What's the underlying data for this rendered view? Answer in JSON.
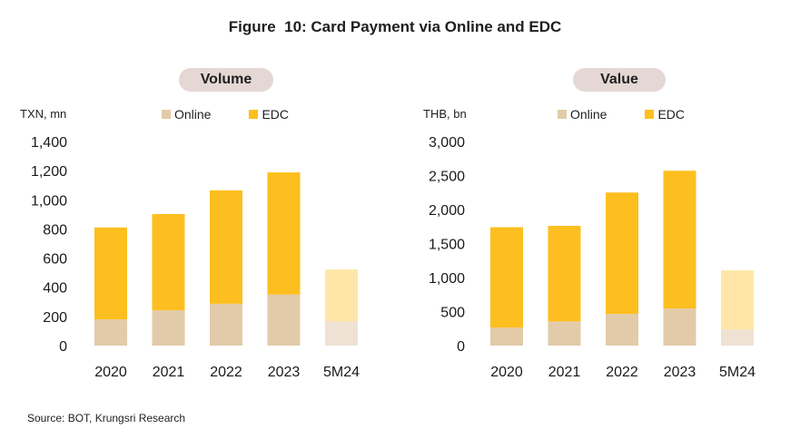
{
  "figure": {
    "title": "Figure  10: Card Payment via Online and EDC"
  },
  "source": "Source: BOT, Krungsri Research",
  "colors": {
    "online": "#e2cba8",
    "edc": "#fdbf1f",
    "online_partial": "#efe2d4",
    "edc_partial": "#ffe6a8",
    "pill": "#e4d7d4"
  },
  "chart_data": [
    {
      "type": "bar",
      "stacked": true,
      "title": "Volume",
      "ylabel": "TXN, mn",
      "categories": [
        "2020",
        "2021",
        "2022",
        "2023",
        "5M24"
      ],
      "series": [
        {
          "name": "Online",
          "values": [
            180,
            242,
            287,
            350,
            165
          ]
        },
        {
          "name": "EDC",
          "values": [
            630,
            660,
            778,
            838,
            357
          ]
        }
      ],
      "ylim": [
        0,
        1400
      ],
      "yticks": [
        0,
        200,
        400,
        600,
        800,
        1000,
        1200,
        1400
      ],
      "ytick_labels": [
        "0",
        "200",
        "400",
        "600",
        "800",
        "1,000",
        "1,200",
        "1,400"
      ],
      "legend": "top",
      "grid": false
    },
    {
      "type": "bar",
      "stacked": true,
      "title": "Value",
      "ylabel": "THB, bn",
      "categories": [
        "2020",
        "2021",
        "2022",
        "2023",
        "5M24"
      ],
      "series": [
        {
          "name": "Online",
          "values": [
            265,
            355,
            465,
            545,
            235
          ]
        },
        {
          "name": "EDC",
          "values": [
            1475,
            1405,
            1785,
            2025,
            870
          ]
        }
      ],
      "ylim": [
        0,
        3000
      ],
      "yticks": [
        0,
        500,
        1000,
        1500,
        2000,
        2500,
        3000
      ],
      "ytick_labels": [
        "0",
        "500",
        "1,000",
        "1,500",
        "2,000",
        "2,500",
        "3,000"
      ],
      "legend": "top",
      "grid": false
    }
  ]
}
